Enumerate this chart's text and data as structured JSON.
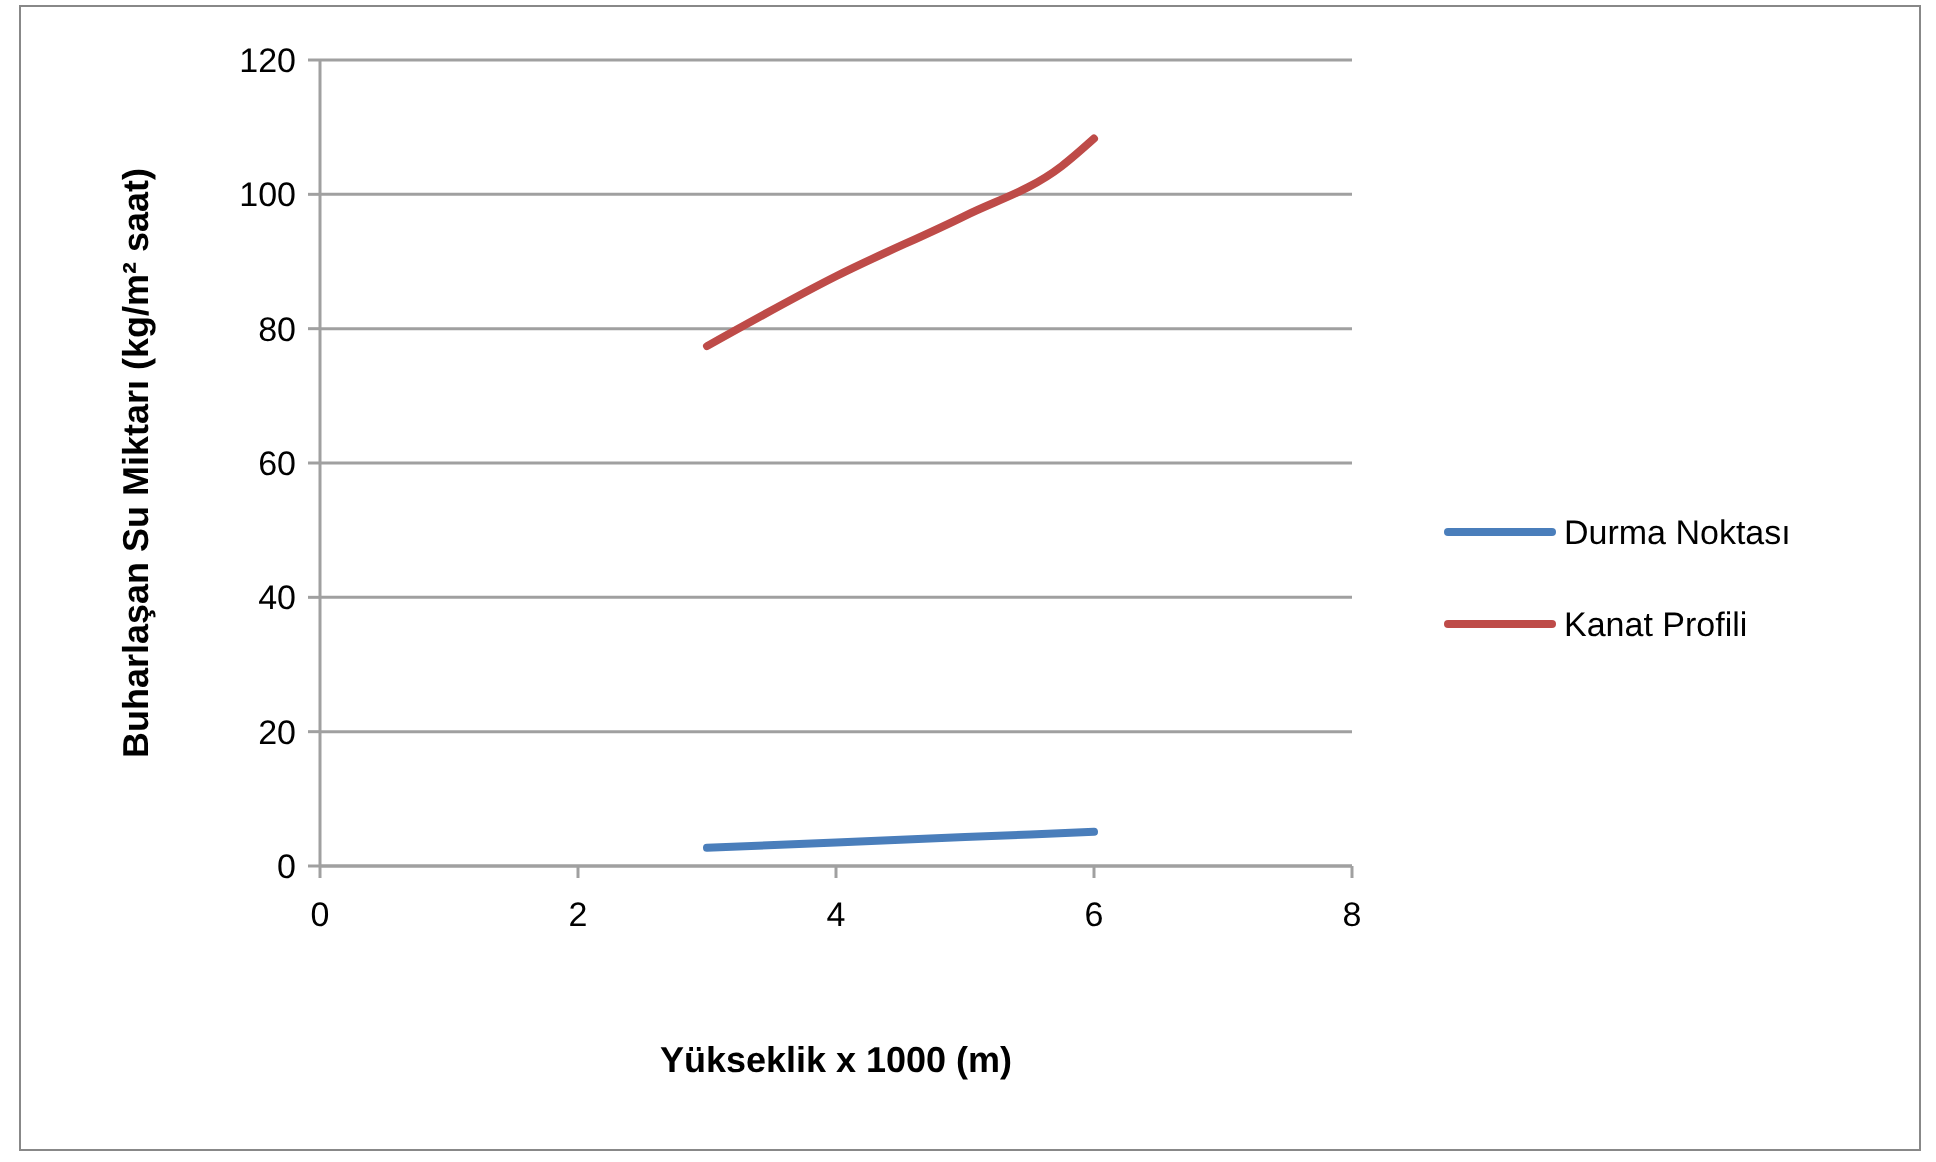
{
  "chart_data": {
    "type": "line",
    "xlabel": "Yükseklik x 1000 (m)",
    "ylabel": "Buharlaşan Su Miktarı (kg/m² saat)",
    "xlim": [
      0,
      8
    ],
    "xticks": [
      0,
      2,
      4,
      6,
      8
    ],
    "ylim": [
      0,
      120
    ],
    "yticks": [
      0,
      20,
      40,
      60,
      80,
      100,
      120
    ],
    "grid": "y",
    "legend": "right",
    "marker": "none",
    "line_style": "solid",
    "series": [
      {
        "name": "Durma Noktası",
        "color": "#4a7ebb",
        "x": [
          3,
          4,
          5,
          6
        ],
        "values": [
          2.7,
          3.5,
          4.3,
          5.1
        ]
      },
      {
        "name": "Kanat Profili",
        "color": "#be4b48",
        "x": [
          3,
          4,
          5,
          5.75,
          6
        ],
        "values": [
          77.4,
          87.8,
          96.8,
          104.2,
          108.3
        ]
      }
    ]
  }
}
